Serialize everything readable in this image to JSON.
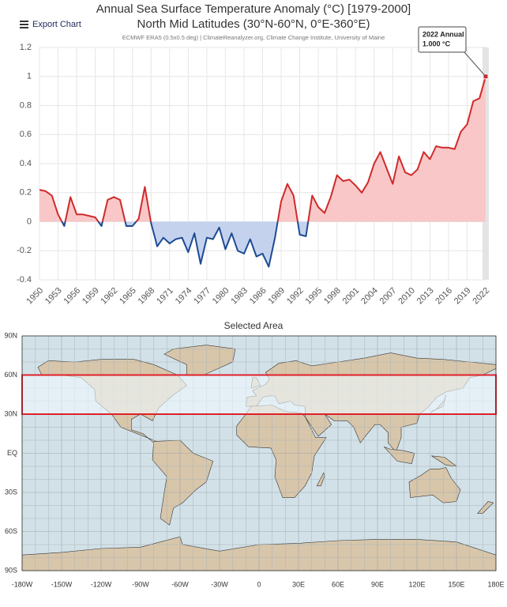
{
  "toolbar": {
    "export": "Export Chart"
  },
  "chart_data": [
    {
      "type": "line",
      "title": "Annual Sea Surface Temperature Anomaly (°C) [1979-2000]",
      "subtitle": "North Mid Latitudes (30°N-60°N, 0°E-360°E)",
      "source": "ECMWF ERA5 (0.5x0.5 deg) | ClimateReanalyzer.org, Climate Change Institute, University of Maine",
      "x": [
        1950,
        1951,
        1952,
        1953,
        1954,
        1955,
        1956,
        1957,
        1958,
        1959,
        1960,
        1961,
        1962,
        1963,
        1964,
        1965,
        1966,
        1967,
        1968,
        1969,
        1970,
        1971,
        1972,
        1973,
        1974,
        1975,
        1976,
        1977,
        1978,
        1979,
        1980,
        1981,
        1982,
        1983,
        1984,
        1985,
        1986,
        1987,
        1988,
        1989,
        1990,
        1991,
        1992,
        1993,
        1994,
        1995,
        1996,
        1997,
        1998,
        1999,
        2000,
        2001,
        2002,
        2003,
        2004,
        2005,
        2006,
        2007,
        2008,
        2009,
        2010,
        2011,
        2012,
        2013,
        2014,
        2015,
        2016,
        2017,
        2018,
        2019,
        2020,
        2021,
        2022
      ],
      "values": [
        0.22,
        0.21,
        0.18,
        0.05,
        -0.03,
        0.17,
        0.05,
        0.05,
        0.04,
        0.03,
        -0.03,
        0.15,
        0.17,
        0.15,
        -0.03,
        -0.03,
        0.02,
        0.24,
        -0.01,
        -0.17,
        -0.11,
        -0.15,
        -0.12,
        -0.11,
        -0.21,
        -0.08,
        -0.29,
        -0.11,
        -0.12,
        -0.04,
        -0.19,
        -0.08,
        -0.2,
        -0.22,
        -0.12,
        -0.24,
        -0.22,
        -0.31,
        -0.11,
        0.14,
        0.26,
        0.18,
        -0.09,
        -0.1,
        0.18,
        0.1,
        0.06,
        0.17,
        0.32,
        0.28,
        0.29,
        0.25,
        0.2,
        0.27,
        0.4,
        0.48,
        0.37,
        0.26,
        0.45,
        0.34,
        0.32,
        0.36,
        0.48,
        0.43,
        0.52,
        0.51,
        0.51,
        0.5,
        0.62,
        0.67,
        0.83,
        0.85,
        1.0
      ],
      "positive_color": "#d02a2a",
      "positive_fill": "#f9c7c7",
      "negative_color": "#1d4b93",
      "negative_fill": "#c5d2ee",
      "xlim": [
        1950,
        2022
      ],
      "xticks": [
        1950,
        1953,
        1956,
        1959,
        1962,
        1965,
        1968,
        1971,
        1974,
        1977,
        1980,
        1983,
        1986,
        1989,
        1992,
        1995,
        1998,
        2001,
        2004,
        2007,
        2010,
        2013,
        2016,
        2019,
        2022
      ],
      "ylim": [
        -0.4,
        1.2
      ],
      "yticks": [
        -0.4,
        -0.2,
        0,
        0.2,
        0.4,
        0.6,
        0.8,
        1,
        1.2
      ],
      "grid": true,
      "annotation": {
        "title": "2022 Annual",
        "label": "1.000 °C"
      }
    },
    {
      "type": "map",
      "title": "Selected Area",
      "xlim": [
        -180,
        180
      ],
      "xticks": [
        {
          "value": -180,
          "label": "-180W"
        },
        {
          "value": -150,
          "label": "-150W"
        },
        {
          "value": -120,
          "label": "-120W"
        },
        {
          "value": -90,
          "label": "-90W"
        },
        {
          "value": -60,
          "label": "-60W"
        },
        {
          "value": -30,
          "label": "-30W"
        },
        0,
        {
          "value": 30,
          "label": "30E"
        },
        {
          "value": 60,
          "label": "60E"
        },
        {
          "value": 90,
          "label": "90E"
        },
        {
          "value": 120,
          "label": "120E"
        },
        {
          "value": 150,
          "label": "150E"
        },
        {
          "value": 180,
          "label": "180E"
        }
      ],
      "ylim": [
        -90,
        90
      ],
      "yticks": [
        {
          "value": 90,
          "label": "90N"
        },
        {
          "value": 60,
          "label": "60N"
        },
        {
          "value": 30,
          "label": "30N"
        },
        {
          "value": 0,
          "label": "EQ"
        },
        {
          "value": -30,
          "label": "30S"
        },
        {
          "value": -60,
          "label": "60S"
        },
        {
          "value": -90,
          "label": "90S"
        }
      ],
      "selection": {
        "lat": [
          30,
          60
        ],
        "lon": [
          -180,
          180
        ]
      },
      "selection_color": "#e0202a"
    }
  ]
}
